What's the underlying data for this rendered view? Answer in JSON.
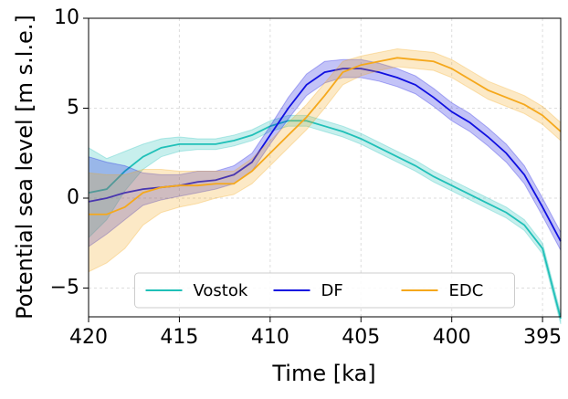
{
  "chart_data": {
    "type": "line",
    "xlabel": "Time [ka]",
    "ylabel": "Potential sea level [m s.l.e.]",
    "x": [
      420,
      419,
      418,
      417,
      416,
      415,
      414,
      413,
      412,
      411,
      410,
      409,
      408,
      407,
      406,
      405,
      404,
      403,
      402,
      401,
      400,
      399,
      398,
      397,
      396,
      395,
      394
    ],
    "xlim": [
      420,
      394
    ],
    "ylim": [
      -6.6,
      10
    ],
    "xticks": [
      420,
      415,
      410,
      405,
      400,
      395
    ],
    "yticks": [
      {
        "value": -5,
        "label": "−5"
      },
      0,
      5,
      10
    ],
    "grid": true,
    "legend": "lower center",
    "series": [
      {
        "name": "Vostok",
        "color": "#20c0b8",
        "values": [
          0.3,
          0.5,
          1.5,
          2.3,
          2.8,
          3.0,
          3.0,
          3.0,
          3.2,
          3.5,
          4.0,
          4.3,
          4.3,
          4.0,
          3.7,
          3.3,
          2.8,
          2.3,
          1.8,
          1.2,
          0.7,
          0.2,
          -0.3,
          -0.8,
          -1.5,
          -2.8,
          -6.7
        ],
        "lower": [
          -2.2,
          -1.2,
          0.4,
          1.6,
          2.3,
          2.6,
          2.7,
          2.7,
          2.9,
          3.2,
          3.7,
          4.0,
          4.0,
          3.7,
          3.4,
          3.0,
          2.5,
          2.0,
          1.5,
          0.9,
          0.4,
          -0.1,
          -0.6,
          -1.1,
          -1.8,
          -3.1,
          -7.0
        ],
        "upper": [
          2.8,
          2.2,
          2.6,
          3.0,
          3.3,
          3.4,
          3.3,
          3.3,
          3.5,
          3.8,
          4.3,
          4.6,
          4.6,
          4.3,
          4.0,
          3.6,
          3.1,
          2.6,
          2.1,
          1.5,
          1.0,
          0.5,
          0.0,
          -0.5,
          -1.2,
          -2.5,
          -6.4
        ]
      },
      {
        "name": "DF",
        "color": "#1010e0",
        "values": [
          -0.2,
          0.0,
          0.3,
          0.5,
          0.6,
          0.7,
          0.9,
          1.0,
          1.3,
          2.0,
          3.5,
          5.0,
          6.3,
          7.0,
          7.2,
          7.2,
          7.0,
          6.7,
          6.3,
          5.6,
          4.8,
          4.2,
          3.4,
          2.5,
          1.3,
          -0.5,
          -2.4
        ],
        "lower": [
          -2.7,
          -2.0,
          -1.2,
          -0.4,
          -0.1,
          0.1,
          0.3,
          0.5,
          0.8,
          1.5,
          3.0,
          4.4,
          5.7,
          6.4,
          6.7,
          6.7,
          6.5,
          6.2,
          5.8,
          5.1,
          4.3,
          3.7,
          2.9,
          2.0,
          0.8,
          -1.0,
          -2.9
        ],
        "upper": [
          2.3,
          2.0,
          1.8,
          1.4,
          1.3,
          1.3,
          1.5,
          1.5,
          1.8,
          2.5,
          4.0,
          5.6,
          6.9,
          7.6,
          7.7,
          7.7,
          7.5,
          7.2,
          6.8,
          6.1,
          5.3,
          4.7,
          3.9,
          3.0,
          1.8,
          0.0,
          -1.9
        ]
      },
      {
        "name": "EDC",
        "color": "#f5a81c",
        "values": [
          -0.9,
          -0.9,
          -0.5,
          0.3,
          0.6,
          0.7,
          0.7,
          0.8,
          0.8,
          1.5,
          2.5,
          3.5,
          4.5,
          5.7,
          7.0,
          7.4,
          7.6,
          7.8,
          7.7,
          7.6,
          7.2,
          6.6,
          6.0,
          5.6,
          5.2,
          4.6,
          3.7
        ],
        "lower": [
          -4.1,
          -3.6,
          -2.8,
          -1.5,
          -0.8,
          -0.5,
          -0.3,
          0.0,
          0.2,
          0.8,
          1.8,
          2.8,
          3.8,
          5.0,
          6.3,
          6.8,
          7.1,
          7.3,
          7.2,
          7.1,
          6.7,
          6.1,
          5.5,
          5.1,
          4.7,
          4.1,
          3.2
        ],
        "upper": [
          1.4,
          1.3,
          1.3,
          1.6,
          1.6,
          1.5,
          1.5,
          1.5,
          1.5,
          2.2,
          3.2,
          4.2,
          5.2,
          6.4,
          7.6,
          7.9,
          8.1,
          8.3,
          8.2,
          8.1,
          7.7,
          7.1,
          6.5,
          6.1,
          5.7,
          5.1,
          4.2
        ]
      }
    ]
  }
}
